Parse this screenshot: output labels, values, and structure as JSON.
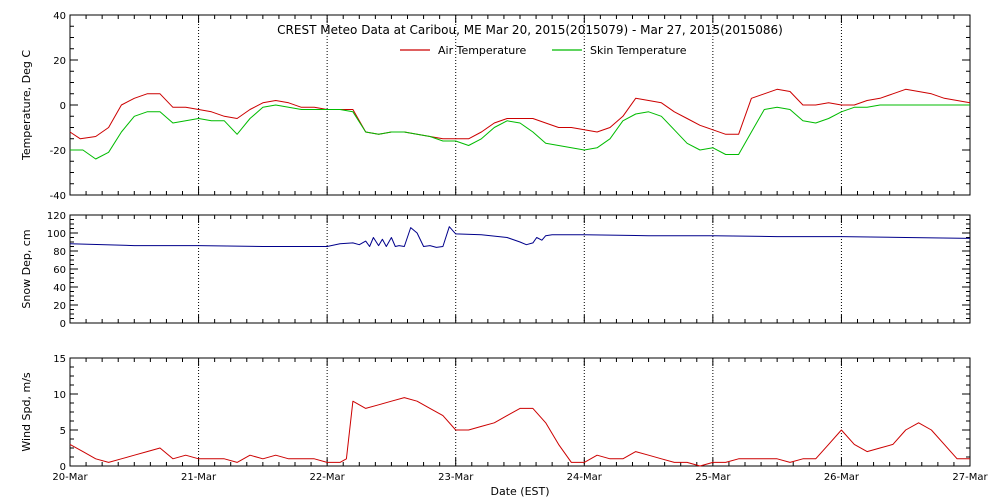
{
  "chart_data": [
    {
      "type": "line",
      "title": "CREST Meteo Data at Caribou, ME   Mar 20, 2015(2015079) - Mar 27, 2015(2015086)",
      "xlabel": "",
      "ylabel": "Temperature, Deg C",
      "ylim": [
        -40,
        40
      ],
      "yticks": [
        -40,
        -20,
        0,
        20,
        40
      ],
      "xlim": [
        0,
        7
      ],
      "grid": "vertical dotted at day boundaries",
      "legend": "top-center",
      "series": [
        {
          "name": "Air Temperature",
          "color": "#cc0000",
          "x": [
            0,
            0.08,
            0.2,
            0.3,
            0.4,
            0.5,
            0.6,
            0.7,
            0.8,
            0.9,
            1.0,
            1.1,
            1.2,
            1.3,
            1.4,
            1.5,
            1.6,
            1.7,
            1.8,
            1.9,
            2.0,
            2.1,
            2.2,
            2.3,
            2.4,
            2.5,
            2.6,
            2.7,
            2.8,
            2.9,
            3.0,
            3.1,
            3.2,
            3.3,
            3.4,
            3.5,
            3.6,
            3.7,
            3.8,
            3.9,
            4.0,
            4.1,
            4.2,
            4.3,
            4.4,
            4.5,
            4.6,
            4.7,
            4.8,
            4.9,
            5.0,
            5.1,
            5.2,
            5.3,
            5.4,
            5.5,
            5.6,
            5.7,
            5.8,
            5.9,
            6.0,
            6.1,
            6.2,
            6.3,
            6.4,
            6.5,
            6.6,
            6.7,
            6.8,
            6.9,
            7.0
          ],
          "values": [
            -12,
            -15,
            -14,
            -10,
            0,
            3,
            5,
            5,
            -1,
            -1,
            -2,
            -3,
            -5,
            -6,
            -2,
            1,
            2,
            1,
            -1,
            -1,
            -2,
            -2,
            -2,
            -12,
            -13,
            -12,
            -12,
            -13,
            -14,
            -15,
            -15,
            -15,
            -12,
            -8,
            -6,
            -6,
            -6,
            -8,
            -10,
            -10,
            -11,
            -12,
            -10,
            -5,
            3,
            2,
            1,
            -3,
            -6,
            -9,
            -11,
            -13,
            -13,
            3,
            5,
            7,
            6,
            0,
            0,
            1,
            0,
            0,
            2,
            3,
            5,
            7,
            6,
            5,
            3,
            2,
            1
          ]
        },
        {
          "name": "Skin Temperature",
          "color": "#00bb00",
          "x": [
            0,
            0.1,
            0.2,
            0.3,
            0.4,
            0.5,
            0.6,
            0.7,
            0.8,
            0.9,
            1.0,
            1.1,
            1.2,
            1.3,
            1.4,
            1.5,
            1.6,
            1.7,
            1.8,
            1.9,
            2.0,
            2.1,
            2.2,
            2.3,
            2.4,
            2.5,
            2.6,
            2.7,
            2.8,
            2.9,
            3.0,
            3.1,
            3.2,
            3.3,
            3.4,
            3.5,
            3.6,
            3.7,
            3.8,
            3.9,
            4.0,
            4.1,
            4.2,
            4.3,
            4.4,
            4.5,
            4.6,
            4.7,
            4.8,
            4.9,
            5.0,
            5.1,
            5.2,
            5.3,
            5.4,
            5.5,
            5.6,
            5.7,
            5.8,
            5.9,
            6.0,
            6.1,
            6.2,
            6.3,
            6.4,
            6.5,
            6.6,
            6.7,
            6.8,
            6.9,
            7.0
          ],
          "values": [
            -20,
            -20,
            -24,
            -21,
            -12,
            -5,
            -3,
            -3,
            -8,
            -7,
            -6,
            -7,
            -7,
            -13,
            -6,
            -1,
            0,
            -1,
            -2,
            -2,
            -2,
            -2,
            -3,
            -12,
            -13,
            -12,
            -12,
            -13,
            -14,
            -16,
            -16,
            -18,
            -15,
            -10,
            -7,
            -8,
            -12,
            -17,
            -18,
            -19,
            -20,
            -19,
            -15,
            -7,
            -4,
            -3,
            -5,
            -11,
            -17,
            -20,
            -19,
            -22,
            -22,
            -12,
            -2,
            -1,
            -2,
            -7,
            -8,
            -6,
            -3,
            -1,
            -1,
            0,
            0,
            0,
            0,
            0,
            0,
            0,
            0
          ]
        }
      ]
    },
    {
      "type": "line",
      "title": "",
      "xlabel": "",
      "ylabel": "Snow Dep, cm",
      "ylim": [
        0,
        120
      ],
      "yticks": [
        0,
        20,
        40,
        60,
        80,
        100,
        120
      ],
      "xlim": [
        0,
        7
      ],
      "series": [
        {
          "name": "",
          "color": "#00008b",
          "x": [
            0,
            0.5,
            1.0,
            1.5,
            2.0,
            2.1,
            2.2,
            2.25,
            2.3,
            2.33,
            2.36,
            2.4,
            2.43,
            2.46,
            2.5,
            2.53,
            2.56,
            2.6,
            2.65,
            2.7,
            2.75,
            2.8,
            2.85,
            2.9,
            2.95,
            3.0,
            3.2,
            3.4,
            3.5,
            3.55,
            3.6,
            3.63,
            3.67,
            3.7,
            3.75,
            3.8,
            4.0,
            4.5,
            5.0,
            5.5,
            6.0,
            6.5,
            7.0
          ],
          "values": [
            88,
            86,
            86,
            85,
            85,
            88,
            89,
            87,
            91,
            85,
            95,
            86,
            93,
            85,
            95,
            85,
            86,
            85,
            106,
            100,
            85,
            86,
            84,
            85,
            107,
            99,
            98,
            95,
            90,
            87,
            89,
            95,
            92,
            97,
            98,
            98,
            98,
            97,
            97,
            96,
            96,
            95,
            94
          ]
        }
      ]
    },
    {
      "type": "line",
      "title": "",
      "xlabel": "Date (EST)",
      "ylabel": "Wind Spd, m/s",
      "ylim": [
        0,
        15
      ],
      "yticks": [
        0,
        5,
        10,
        15
      ],
      "xlim": [
        0,
        7
      ],
      "xticks": [
        "20-Mar",
        "21-Mar",
        "22-Mar",
        "23-Mar",
        "24-Mar",
        "25-Mar",
        "26-Mar",
        "27-Mar"
      ],
      "series": [
        {
          "name": "",
          "color": "#cc0000",
          "x": [
            0,
            0.1,
            0.2,
            0.3,
            0.4,
            0.5,
            0.6,
            0.7,
            0.8,
            0.9,
            1.0,
            1.1,
            1.2,
            1.3,
            1.4,
            1.5,
            1.6,
            1.7,
            1.8,
            1.9,
            2.0,
            2.1,
            2.15,
            2.2,
            2.3,
            2.4,
            2.5,
            2.6,
            2.7,
            2.8,
            2.9,
            3.0,
            3.1,
            3.2,
            3.3,
            3.4,
            3.5,
            3.6,
            3.7,
            3.8,
            3.9,
            4.0,
            4.1,
            4.2,
            4.3,
            4.4,
            4.5,
            4.6,
            4.7,
            4.8,
            4.9,
            5.0,
            5.1,
            5.2,
            5.3,
            5.4,
            5.5,
            5.6,
            5.7,
            5.8,
            5.9,
            6.0,
            6.1,
            6.2,
            6.3,
            6.4,
            6.5,
            6.6,
            6.7,
            6.8,
            6.9,
            7.0
          ],
          "values": [
            3,
            2,
            1,
            0.5,
            1,
            1.5,
            2,
            2.5,
            1,
            1.5,
            1,
            1,
            1,
            0.5,
            1.5,
            1,
            1.5,
            1,
            1,
            1,
            0.5,
            0.5,
            1,
            9,
            8,
            8.5,
            9,
            9.5,
            9,
            8,
            7,
            5,
            5,
            5.5,
            6,
            7,
            8,
            8,
            6,
            3,
            0.5,
            0.5,
            1.5,
            1,
            1,
            2,
            1.5,
            1,
            0.5,
            0.5,
            0,
            0.5,
            0.5,
            1,
            1,
            1,
            1,
            0.5,
            1,
            1,
            3,
            5,
            3,
            2,
            2.5,
            3,
            5,
            6,
            5,
            3,
            1,
            1
          ]
        }
      ]
    }
  ]
}
